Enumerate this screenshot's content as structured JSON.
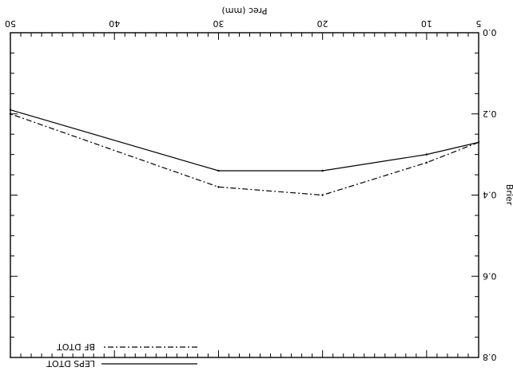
{
  "chart_data": {
    "type": "line",
    "title": "",
    "xlabel": "Prec (mm)",
    "ylabel": "Brier",
    "x": [
      5,
      10,
      20,
      30,
      50
    ],
    "xlim": [
      5,
      50
    ],
    "ylim": [
      0.0,
      0.8
    ],
    "x_ticks": [
      "5",
      "10",
      "20",
      "30",
      "40",
      "50"
    ],
    "y_ticks": [
      "0.0",
      "0.2",
      "0.4",
      "0.6",
      "0.8"
    ],
    "grid": false,
    "legend_position": "bottom-right",
    "image_orientation": "rotated 180 degrees",
    "series": [
      {
        "name": "LEPS DTOT",
        "style": "solid",
        "values": [
          0.27,
          0.3,
          0.34,
          0.34,
          0.19
        ]
      },
      {
        "name": "BF   DTOT",
        "style": "dash-dot",
        "values": [
          0.27,
          0.32,
          0.4,
          0.38,
          0.2
        ]
      }
    ]
  }
}
